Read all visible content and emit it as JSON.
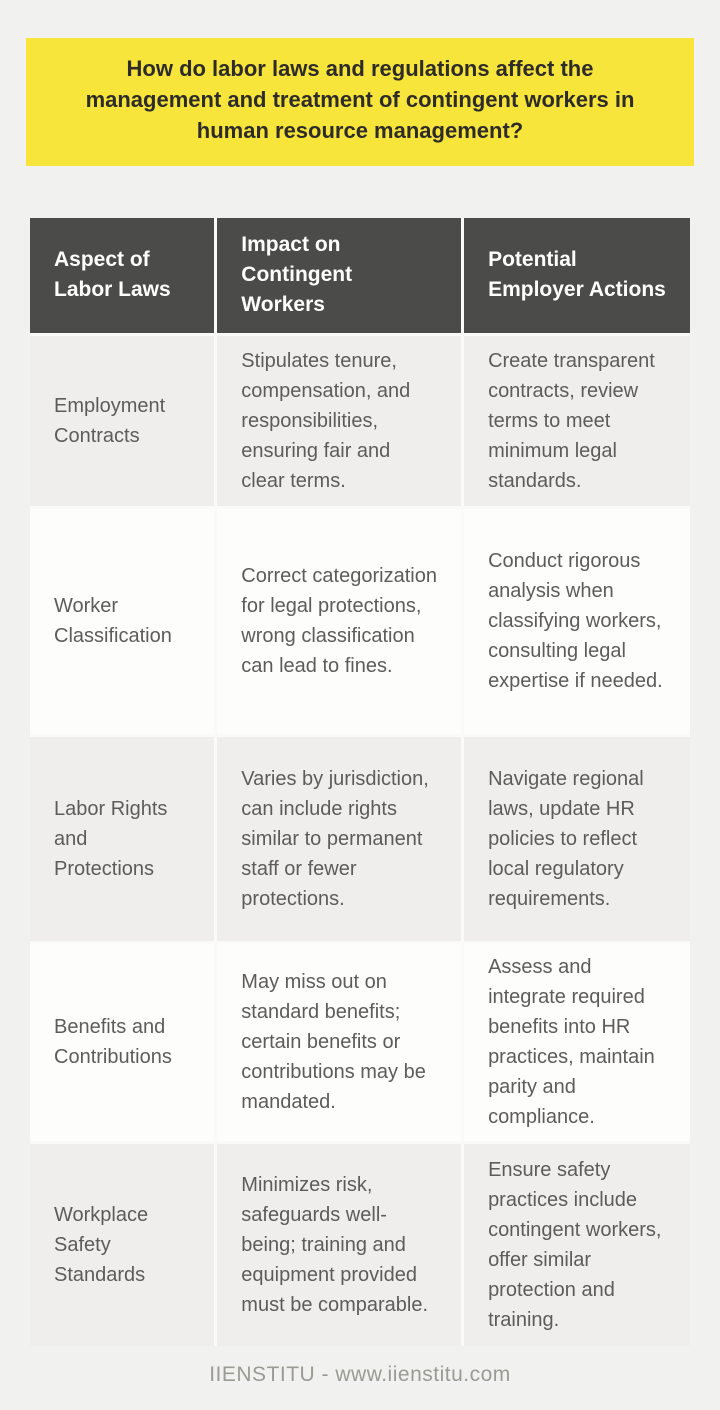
{
  "title": "How do labor laws and regulations affect the management and treatment of contingent workers in human resource management?",
  "table": {
    "headers": [
      "Aspect of Labor Laws",
      "Impact on Contingent Workers",
      "Potential Employer Actions"
    ],
    "rows": [
      {
        "aspect": "Employment Contracts",
        "impact": "Stipulates tenure, compensation, and responsibilities, ensuring fair and clear terms.",
        "actions": "Create transparent contracts, review terms to meet minimum legal standards."
      },
      {
        "aspect": "Worker Classification",
        "impact": "Correct categorization for legal protections, wrong classification can lead to fines.",
        "actions": "Conduct rigorous analysis when classifying workers, consulting legal expertise if needed."
      },
      {
        "aspect": "Labor Rights and Protections",
        "impact": "Varies by jurisdiction, can include rights similar to permanent staff or fewer protections.",
        "actions": "Navigate regional laws, update HR policies to reflect local regulatory requirements."
      },
      {
        "aspect": "Benefits and Contributions",
        "impact": "May miss out on standard benefits; certain benefits or contributions may be mandated.",
        "actions": "Assess and integrate required benefits into HR practices, maintain parity and compliance."
      },
      {
        "aspect": "Workplace Safety Standards",
        "impact": "Minimizes risk, safeguards well-being; training and equipment provided must be comparable.",
        "actions": "Ensure safety practices include contingent workers, offer similar protection and training."
      }
    ]
  },
  "footer": {
    "text": "IIENSTITU - www.iienstitu.com"
  },
  "colors": {
    "banner_yellow": "#f8e53b",
    "header_gray": "#4b4b49",
    "row_gray": "#efeeec",
    "row_white": "#fdfdfc",
    "body_text": "#5d5c5a",
    "title_text": "#2d2c28",
    "footer_text": "#9b9a93",
    "page_background": "#f1f1ef"
  }
}
